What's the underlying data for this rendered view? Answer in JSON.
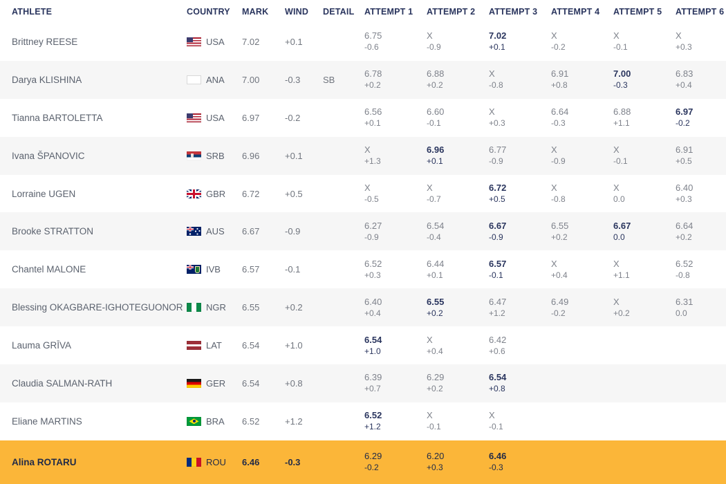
{
  "colors": {
    "header_text": "#2a355e",
    "name_text": "#5b626e",
    "value_text": "#70757e",
    "attempt_text": "#7e828b",
    "best_text": "#2a355e",
    "alt_row_bg": "#f6f6f6",
    "highlight_bg": "#fbb639",
    "highlight_text": "#222b47"
  },
  "table": {
    "headers": {
      "athlete": "ATHLETE",
      "country": "COUNTRY",
      "mark": "MARK",
      "wind": "WIND",
      "detail": "DETAIL",
      "attempts": [
        "ATTEMPT 1",
        "ATTEMPT 2",
        "ATTEMPT 3",
        "ATTEMPT 4",
        "ATTEMPT 5",
        "ATTEMPT 6"
      ]
    },
    "rows": [
      {
        "athlete": "Brittney REESE",
        "country": "USA",
        "flag": "usa",
        "mark": "7.02",
        "wind": "+0.1",
        "detail": "",
        "highlight": false,
        "attempts": [
          {
            "mark": "6.75",
            "wind": "-0.6",
            "best": false
          },
          {
            "mark": "X",
            "wind": "-0.9",
            "best": false
          },
          {
            "mark": "7.02",
            "wind": "+0.1",
            "best": true
          },
          {
            "mark": "X",
            "wind": "-0.2",
            "best": false
          },
          {
            "mark": "X",
            "wind": "-0.1",
            "best": false
          },
          {
            "mark": "X",
            "wind": "+0.3",
            "best": false
          }
        ]
      },
      {
        "athlete": "Darya KLISHINA",
        "country": "ANA",
        "flag": "ana",
        "mark": "7.00",
        "wind": "-0.3",
        "detail": "SB",
        "highlight": false,
        "attempts": [
          {
            "mark": "6.78",
            "wind": "+0.2",
            "best": false
          },
          {
            "mark": "6.88",
            "wind": "+0.2",
            "best": false
          },
          {
            "mark": "X",
            "wind": "-0.8",
            "best": false
          },
          {
            "mark": "6.91",
            "wind": "+0.8",
            "best": false
          },
          {
            "mark": "7.00",
            "wind": "-0.3",
            "best": true
          },
          {
            "mark": "6.83",
            "wind": "+0.4",
            "best": false
          }
        ]
      },
      {
        "athlete": "Tianna BARTOLETTA",
        "country": "USA",
        "flag": "usa",
        "mark": "6.97",
        "wind": "-0.2",
        "detail": "",
        "highlight": false,
        "attempts": [
          {
            "mark": "6.56",
            "wind": "+0.1",
            "best": false
          },
          {
            "mark": "6.60",
            "wind": "-0.1",
            "best": false
          },
          {
            "mark": "X",
            "wind": "+0.3",
            "best": false
          },
          {
            "mark": "6.64",
            "wind": "-0.3",
            "best": false
          },
          {
            "mark": "6.88",
            "wind": "+1.1",
            "best": false
          },
          {
            "mark": "6.97",
            "wind": "-0.2",
            "best": true
          }
        ]
      },
      {
        "athlete": "Ivana ŠPANOVIC",
        "country": "SRB",
        "flag": "srb",
        "mark": "6.96",
        "wind": "+0.1",
        "detail": "",
        "highlight": false,
        "attempts": [
          {
            "mark": "X",
            "wind": "+1.3",
            "best": false
          },
          {
            "mark": "6.96",
            "wind": "+0.1",
            "best": true
          },
          {
            "mark": "6.77",
            "wind": "-0.9",
            "best": false
          },
          {
            "mark": "X",
            "wind": "-0.9",
            "best": false
          },
          {
            "mark": "X",
            "wind": "-0.1",
            "best": false
          },
          {
            "mark": "6.91",
            "wind": "+0.5",
            "best": false
          }
        ]
      },
      {
        "athlete": "Lorraine UGEN",
        "country": "GBR",
        "flag": "gbr",
        "mark": "6.72",
        "wind": "+0.5",
        "detail": "",
        "highlight": false,
        "attempts": [
          {
            "mark": "X",
            "wind": "-0.5",
            "best": false
          },
          {
            "mark": "X",
            "wind": "-0.7",
            "best": false
          },
          {
            "mark": "6.72",
            "wind": "+0.5",
            "best": true
          },
          {
            "mark": "X",
            "wind": "-0.8",
            "best": false
          },
          {
            "mark": "X",
            "wind": "0.0",
            "best": false
          },
          {
            "mark": "6.40",
            "wind": "+0.3",
            "best": false
          }
        ]
      },
      {
        "athlete": "Brooke STRATTON",
        "country": "AUS",
        "flag": "aus",
        "mark": "6.67",
        "wind": "-0.9",
        "detail": "",
        "highlight": false,
        "attempts": [
          {
            "mark": "6.27",
            "wind": "-0.9",
            "best": false
          },
          {
            "mark": "6.54",
            "wind": "-0.4",
            "best": false
          },
          {
            "mark": "6.67",
            "wind": "-0.9",
            "best": true
          },
          {
            "mark": "6.55",
            "wind": "+0.2",
            "best": false
          },
          {
            "mark": "6.67",
            "wind": "0.0",
            "best": true
          },
          {
            "mark": "6.64",
            "wind": "+0.2",
            "best": false
          }
        ]
      },
      {
        "athlete": "Chantel MALONE",
        "country": "IVB",
        "flag": "ivb",
        "mark": "6.57",
        "wind": "-0.1",
        "detail": "",
        "highlight": false,
        "attempts": [
          {
            "mark": "6.52",
            "wind": "+0.3",
            "best": false
          },
          {
            "mark": "6.44",
            "wind": "+0.1",
            "best": false
          },
          {
            "mark": "6.57",
            "wind": "-0.1",
            "best": true
          },
          {
            "mark": "X",
            "wind": "+0.4",
            "best": false
          },
          {
            "mark": "X",
            "wind": "+1.1",
            "best": false
          },
          {
            "mark": "6.52",
            "wind": "-0.8",
            "best": false
          }
        ]
      },
      {
        "athlete": "Blessing OKAGBARE-IGHOTEGUONOR",
        "country": "NGR",
        "flag": "ngr",
        "mark": "6.55",
        "wind": "+0.2",
        "detail": "",
        "highlight": false,
        "attempts": [
          {
            "mark": "6.40",
            "wind": "+0.4",
            "best": false
          },
          {
            "mark": "6.55",
            "wind": "+0.2",
            "best": true
          },
          {
            "mark": "6.47",
            "wind": "+1.2",
            "best": false
          },
          {
            "mark": "6.49",
            "wind": "-0.2",
            "best": false
          },
          {
            "mark": "X",
            "wind": "+0.2",
            "best": false
          },
          {
            "mark": "6.31",
            "wind": "0.0",
            "best": false
          }
        ]
      },
      {
        "athlete": "Lauma GRĪVA",
        "country": "LAT",
        "flag": "lat",
        "mark": "6.54",
        "wind": "+1.0",
        "detail": "",
        "highlight": false,
        "attempts": [
          {
            "mark": "6.54",
            "wind": "+1.0",
            "best": true
          },
          {
            "mark": "X",
            "wind": "+0.4",
            "best": false
          },
          {
            "mark": "6.42",
            "wind": "+0.6",
            "best": false
          }
        ]
      },
      {
        "athlete": "Claudia SALMAN-RATH",
        "country": "GER",
        "flag": "ger",
        "mark": "6.54",
        "wind": "+0.8",
        "detail": "",
        "highlight": false,
        "attempts": [
          {
            "mark": "6.39",
            "wind": "+0.7",
            "best": false
          },
          {
            "mark": "6.29",
            "wind": "+0.2",
            "best": false
          },
          {
            "mark": "6.54",
            "wind": "+0.8",
            "best": true
          }
        ]
      },
      {
        "athlete": "Eliane MARTINS",
        "country": "BRA",
        "flag": "bra",
        "mark": "6.52",
        "wind": "+1.2",
        "detail": "",
        "highlight": false,
        "attempts": [
          {
            "mark": "6.52",
            "wind": "+1.2",
            "best": true
          },
          {
            "mark": "X",
            "wind": "-0.1",
            "best": false
          },
          {
            "mark": "X",
            "wind": "-0.1",
            "best": false
          }
        ]
      },
      {
        "athlete": "Alina ROTARU",
        "country": "ROU",
        "flag": "rou",
        "mark": "6.46",
        "wind": "-0.3",
        "detail": "",
        "highlight": true,
        "attempts": [
          {
            "mark": "6.29",
            "wind": "-0.2",
            "best": false
          },
          {
            "mark": "6.20",
            "wind": "+0.3",
            "best": false
          },
          {
            "mark": "6.46",
            "wind": "-0.3",
            "best": true
          }
        ]
      }
    ]
  }
}
